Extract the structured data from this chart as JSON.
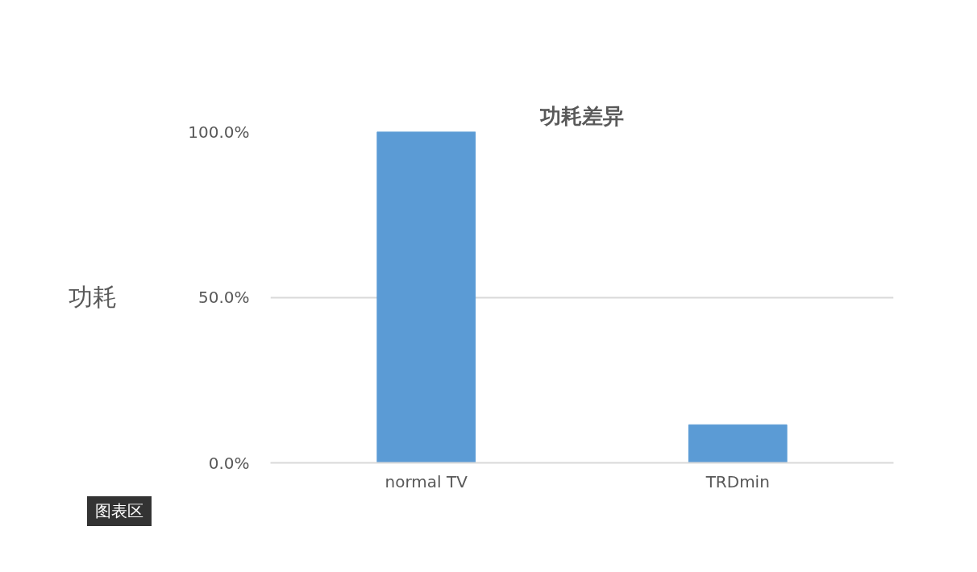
{
  "chart_data": {
    "type": "bar",
    "title": "功耗差异",
    "ylabel": "功耗",
    "categories": [
      "normal TV",
      "TRDmin"
    ],
    "values": [
      100,
      11.5
    ],
    "color": "#5b9bd5",
    "ylim": [
      0,
      100
    ],
    "yticks": [
      {
        "value": 0,
        "label": "0.0%"
      },
      {
        "value": 50,
        "label": "50.0%"
      },
      {
        "value": 100,
        "label": "100.0%"
      }
    ],
    "grid": "y",
    "annotations": [
      "图表区"
    ]
  }
}
